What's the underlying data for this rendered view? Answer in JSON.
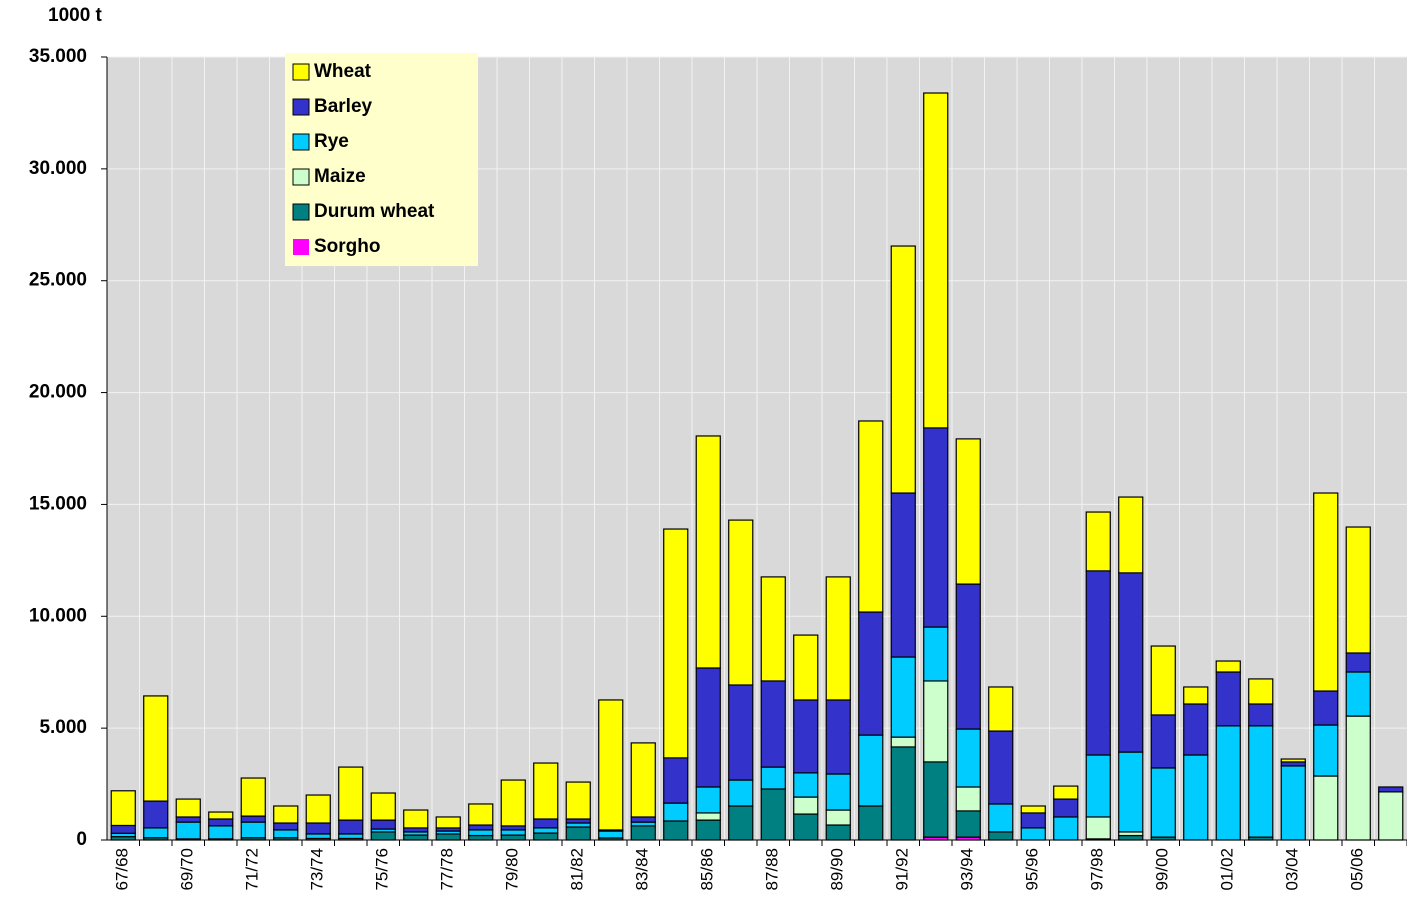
{
  "chart_data": {
    "type": "stacked_bar",
    "y_label": "1000 t",
    "categories": [
      "67/68",
      null,
      "69/70",
      null,
      "71/72",
      null,
      "73/74",
      null,
      "75/76",
      null,
      "77/78",
      null,
      "79/80",
      null,
      "81/82",
      null,
      "83/84",
      null,
      "85/86",
      null,
      "87/88",
      null,
      "89/90",
      null,
      "91/92",
      null,
      "93/94",
      null,
      "95/96",
      null,
      "97/98",
      null,
      "99/00",
      null,
      "01/02",
      null,
      "03/04",
      null,
      "05/06",
      null
    ],
    "series": [
      {
        "name": "Wheat",
        "color": "#ffff00",
        "values": [
          1550,
          4700,
          800,
          310,
          1700,
          760,
          1250,
          2370,
          1210,
          800,
          490,
          940,
          2050,
          2500,
          1650,
          5810,
          3310,
          10230,
          10370,
          7370,
          4650,
          2900,
          5500,
          8540,
          11040,
          14970,
          6490,
          1970,
          310,
          580,
          2630,
          3390,
          3080,
          760,
          490,
          1120,
          130,
          8850,
          5630,
          0
        ]
      },
      {
        "name": "Barley",
        "color": "#3333cc",
        "values": [
          350,
          1200,
          230,
          310,
          270,
          310,
          490,
          620,
          400,
          180,
          140,
          220,
          180,
          400,
          180,
          50,
          230,
          2020,
          5320,
          4250,
          3850,
          3260,
          3310,
          5500,
          7330,
          8900,
          6480,
          3260,
          670,
          800,
          8230,
          8010,
          2370,
          2280,
          2410,
          980,
          180,
          1520,
          850,
          220
        ]
      },
      {
        "name": "Rye",
        "color": "#00ccff",
        "values": [
          150,
          440,
          750,
          580,
          700,
          350,
          200,
          200,
          130,
          140,
          130,
          250,
          230,
          230,
          180,
          310,
          170,
          800,
          1160,
          1160,
          980,
          1080,
          1610,
          3170,
          3580,
          2410,
          2590,
          1250,
          540,
          1030,
          2770,
          3570,
          3090,
          3800,
          5100,
          4970,
          3310,
          2280,
          1970,
          0
        ]
      },
      {
        "name": "Maize",
        "color": "#ccffcc",
        "values": [
          0,
          0,
          0,
          0,
          0,
          0,
          0,
          0,
          0,
          0,
          0,
          0,
          0,
          0,
          0,
          0,
          0,
          0,
          320,
          0,
          0,
          760,
          670,
          0,
          440,
          3620,
          1070,
          0,
          0,
          0,
          980,
          160,
          0,
          0,
          0,
          0,
          0,
          2860,
          5540,
          2150
        ]
      },
      {
        "name": "Durum wheat",
        "color": "#008080",
        "values": [
          150,
          100,
          50,
          50,
          100,
          100,
          70,
          70,
          360,
          220,
          270,
          200,
          220,
          310,
          580,
          90,
          630,
          850,
          890,
          1520,
          2280,
          1160,
          670,
          1520,
          4160,
          3360,
          1170,
          360,
          0,
          0,
          50,
          200,
          130,
          0,
          0,
          130,
          0,
          0,
          0,
          0
        ]
      },
      {
        "name": "Sorgho",
        "color": "#ff00ff",
        "values": [
          0,
          0,
          0,
          0,
          0,
          0,
          0,
          0,
          0,
          0,
          0,
          0,
          0,
          0,
          0,
          0,
          0,
          0,
          0,
          0,
          0,
          0,
          0,
          0,
          0,
          130,
          130,
          0,
          0,
          0,
          0,
          0,
          0,
          0,
          0,
          0,
          0,
          0,
          0,
          0
        ]
      }
    ],
    "ylim": [
      0,
      35000
    ],
    "yticks": [
      0,
      {
        "value": 5000,
        "label": "5.000"
      },
      {
        "value": 10000,
        "label": "10.000"
      },
      {
        "value": 15000,
        "label": "15.000"
      },
      {
        "value": 20000,
        "label": "20.000"
      },
      {
        "value": 25000,
        "label": "25.000"
      },
      {
        "value": 30000,
        "label": "30.000"
      },
      {
        "value": 35000,
        "label": "35.000"
      }
    ],
    "grid": true,
    "legend": "top-left"
  }
}
